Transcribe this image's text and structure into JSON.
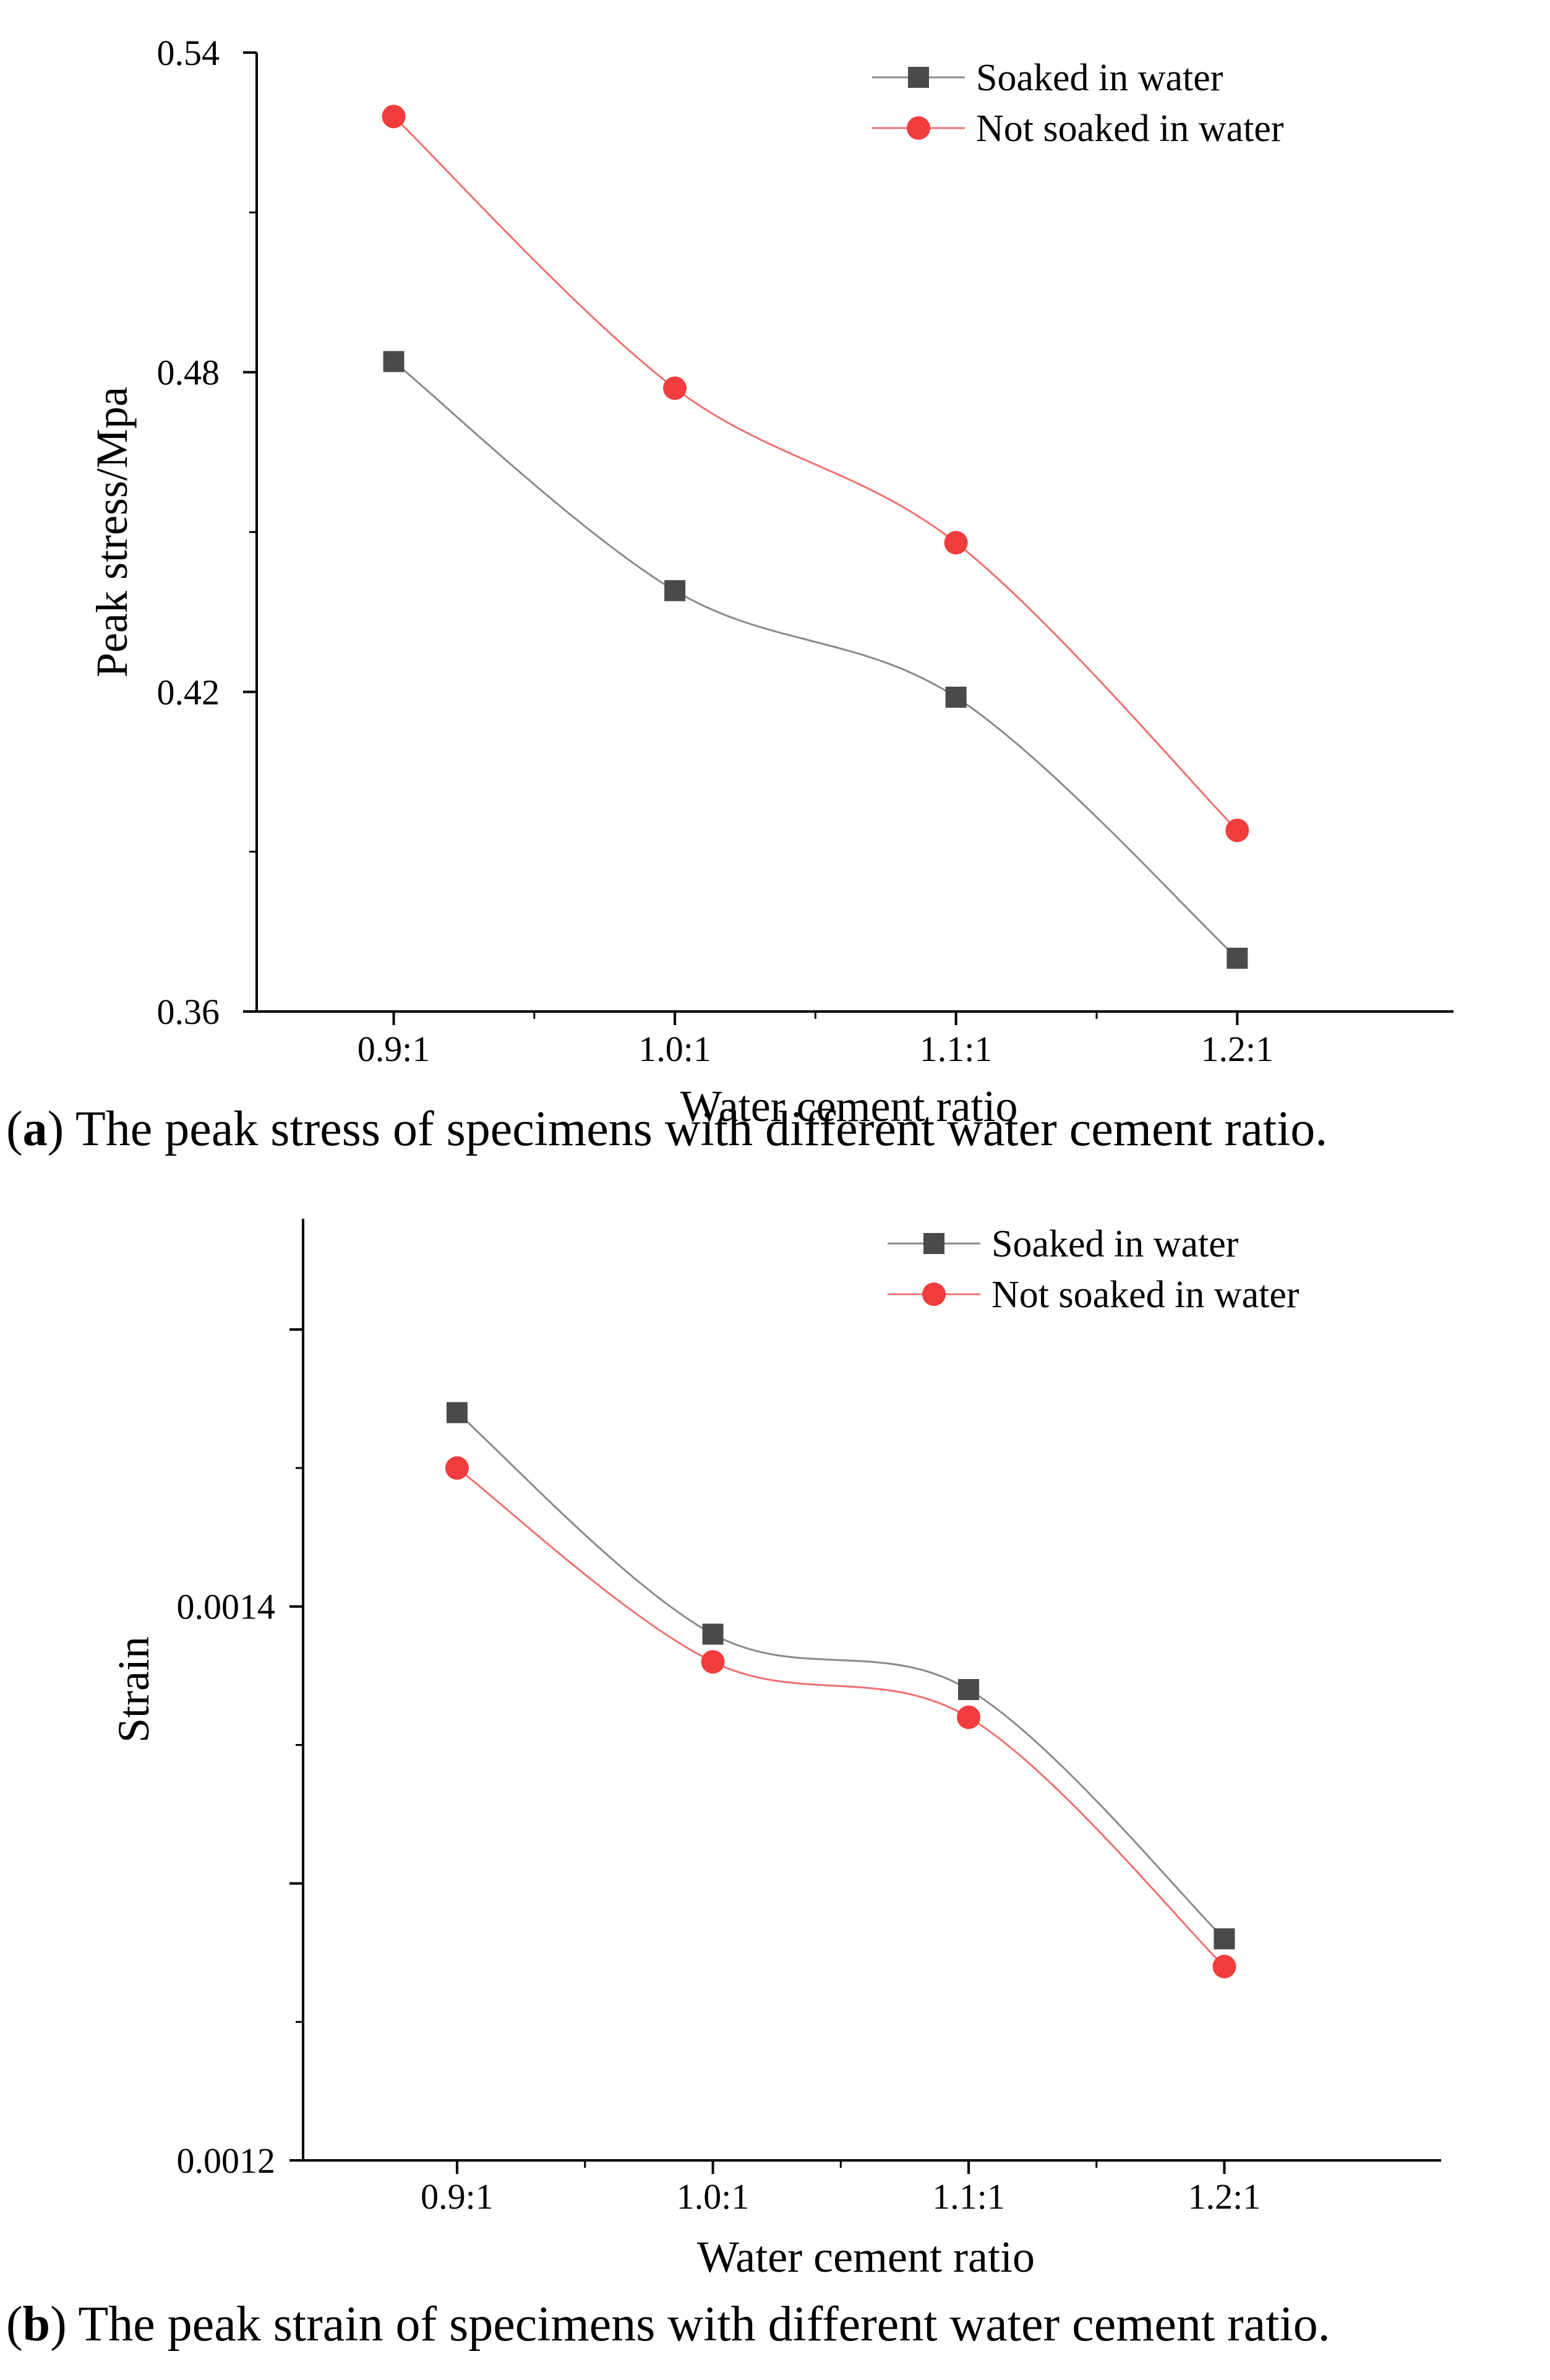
{
  "chart_data": [
    {
      "type": "line",
      "panel": "a",
      "caption_letter": "a",
      "caption_text": "The peak stress of specimens with different water cement ratio.",
      "categories": [
        "0.9:1",
        "1.0:1",
        "1.1:1",
        "1.2:1"
      ],
      "xlabel": "Water cement ratio",
      "ylabel": "Peak stress/Mpa",
      "ylim": [
        0.36,
        0.54
      ],
      "yticks": [
        0.36,
        0.42,
        0.48,
        0.54
      ],
      "ytick_labels": [
        "0.36",
        "0.42",
        "0.48",
        "0.54"
      ],
      "legend_position": "top-right",
      "series": [
        {
          "name": "Soaked in water",
          "marker": "square",
          "color": "#4a4a4a",
          "line_color": "#8a8a8a",
          "values": [
            0.482,
            0.439,
            0.419,
            0.37
          ]
        },
        {
          "name": "Not soaked in water",
          "marker": "circle",
          "color": "#f03c3c",
          "line_color": "#f07070",
          "values": [
            0.528,
            0.477,
            0.448,
            0.394
          ]
        }
      ]
    },
    {
      "type": "line",
      "panel": "b",
      "caption_letter": "b",
      "caption_text": "The peak strain of specimens with different water cement ratio.",
      "categories": [
        "0.9:1",
        "1.0:1",
        "1.1:1",
        "1.2:1"
      ],
      "xlabel": "Water cement ratio",
      "ylabel": "Strain",
      "ylim": [
        0.0012,
        0.00154
      ],
      "yticks": [
        0.0012,
        0.0013,
        0.0014,
        0.0015
      ],
      "ytick_labels": [
        "0.0012",
        "",
        "0.0014",
        ""
      ],
      "legend_position": "top-right",
      "series": [
        {
          "name": "Soaked in water",
          "marker": "square",
          "color": "#4a4a4a",
          "line_color": "#8a8a8a",
          "values": [
            0.00147,
            0.00139,
            0.00137,
            0.00128
          ]
        },
        {
          "name": "Not soaked in water",
          "marker": "circle",
          "color": "#f03c3c",
          "line_color": "#f07070",
          "values": [
            0.00145,
            0.00138,
            0.00136,
            0.00127
          ]
        }
      ]
    }
  ]
}
